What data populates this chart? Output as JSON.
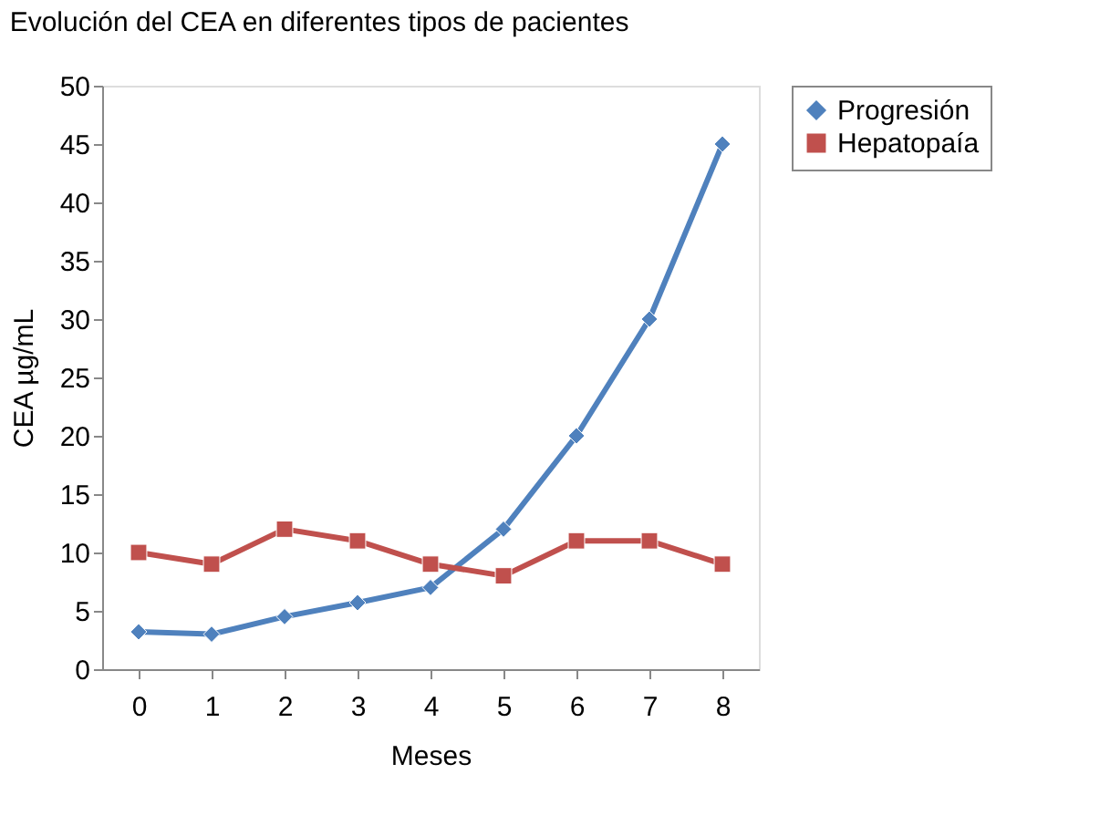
{
  "chart_data": {
    "type": "line",
    "title": "Evolución del CEA en diferentes tipos de pacientes",
    "xlabel": "Meses",
    "ylabel": "CEA µg/mL",
    "categories": [
      "0",
      "1",
      "2",
      "3",
      "4",
      "5",
      "6",
      "7",
      "8"
    ],
    "series": [
      {
        "name": "Progresión",
        "color": "#4f81bd",
        "marker": "diamond",
        "values": [
          3.2,
          3.0,
          4.5,
          5.7,
          7,
          12,
          20,
          30,
          45
        ]
      },
      {
        "name": "Hepatopaía",
        "color": "#c0504d",
        "marker": "square",
        "values": [
          10,
          9,
          12,
          11,
          9,
          8,
          11,
          11,
          9
        ]
      }
    ],
    "ylim": [
      0,
      50
    ],
    "yticks": [
      0,
      5,
      10,
      15,
      20,
      25,
      30,
      35,
      40,
      45,
      50
    ],
    "grid": false,
    "legend": "right",
    "line_style": "solid"
  }
}
